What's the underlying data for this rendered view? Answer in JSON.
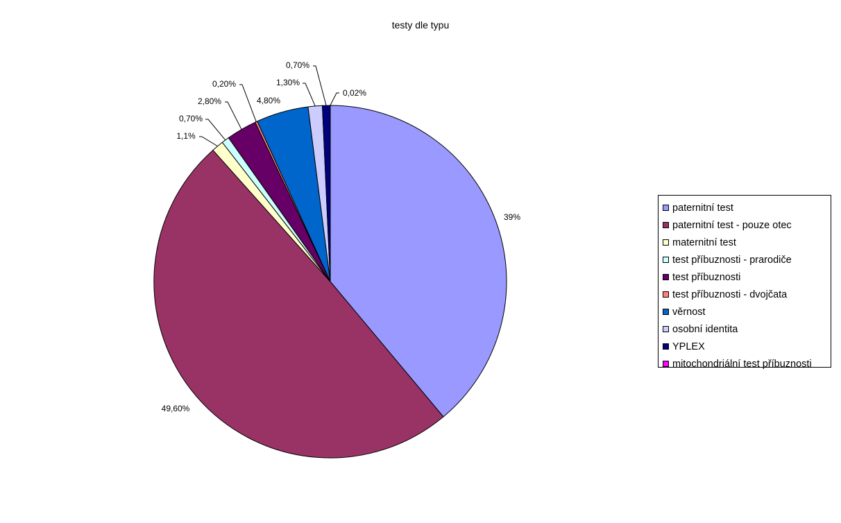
{
  "chart_data": {
    "type": "pie",
    "title": "testy dle typu",
    "legend_position": "right",
    "start_angle_deg": 0,
    "direction": "clockwise",
    "slices": [
      {
        "name": "paternitní test",
        "value": 39.0,
        "label": "39%",
        "color": "#9999ff"
      },
      {
        "name": "paternitní test - pouze otec",
        "value": 49.6,
        "label": "49,60%",
        "color": "#993366"
      },
      {
        "name": "maternitní test",
        "value": 1.1,
        "label": "1,1%",
        "color": "#ffffcc"
      },
      {
        "name": "test příbuznosti - prarodiče",
        "value": 0.7,
        "label": "0,70%",
        "color": "#ccffff"
      },
      {
        "name": "test příbuznosti",
        "value": 2.8,
        "label": "2,80%",
        "color": "#660066"
      },
      {
        "name": "test příbuznosti - dvojčata",
        "value": 0.2,
        "label": "0,20%",
        "color": "#ff8080"
      },
      {
        "name": "věrnost",
        "value": 4.8,
        "label": "4,80%",
        "color": "#0066cc"
      },
      {
        "name": "osobní identita",
        "value": 1.3,
        "label": "1,30%",
        "color": "#ccccff"
      },
      {
        "name": "YPLEX",
        "value": 0.7,
        "label": "0,70%",
        "color": "#000080"
      },
      {
        "name": "mitochondriální test příbuznosti",
        "value": 0.02,
        "label": "0,02%",
        "color": "#ff00ff"
      }
    ]
  }
}
